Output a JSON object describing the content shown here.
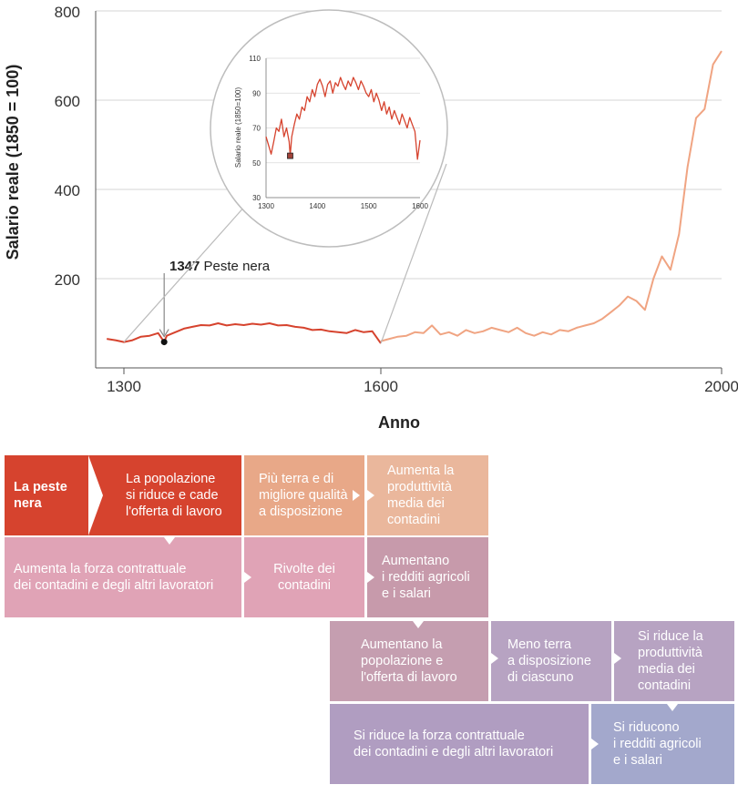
{
  "chart_data": {
    "type": "line",
    "title": "",
    "xlabel": "Anno",
    "ylabel": "Salario reale (1850 = 100)",
    "xlim": [
      1280,
      2000
    ],
    "ylim": [
      0,
      800
    ],
    "xticks": [
      1300,
      1600,
      2000
    ],
    "yticks": [
      200,
      400,
      600,
      800
    ],
    "series": [
      {
        "color": "#d6432e",
        "x": [
          1280,
          1290,
          1300,
          1310,
          1320,
          1330,
          1340,
          1347,
          1350,
          1360,
          1370,
          1380,
          1390,
          1400,
          1410,
          1420,
          1430,
          1440,
          1450,
          1460,
          1470,
          1480,
          1490,
          1500,
          1510,
          1520,
          1530,
          1540,
          1550,
          1560,
          1570,
          1580,
          1590,
          1600
        ],
        "y": [
          65,
          62,
          58,
          62,
          70,
          72,
          78,
          58,
          72,
          80,
          88,
          92,
          96,
          95,
          100,
          95,
          98,
          96,
          99,
          97,
          100,
          95,
          96,
          92,
          90,
          85,
          86,
          82,
          80,
          78,
          85,
          80,
          82,
          55
        ]
      },
      {
        "color": "#f0a482",
        "x": [
          1600,
          1610,
          1620,
          1630,
          1640,
          1650,
          1660,
          1670,
          1680,
          1690,
          1700,
          1710,
          1720,
          1730,
          1740,
          1750,
          1760,
          1770,
          1780,
          1790,
          1800,
          1810,
          1820,
          1830,
          1840,
          1850,
          1860,
          1870,
          1880,
          1890,
          1900,
          1910,
          1920,
          1930,
          1940,
          1950,
          1960,
          1970,
          1980,
          1990,
          2000
        ],
        "y": [
          60,
          65,
          70,
          72,
          80,
          78,
          95,
          75,
          80,
          72,
          85,
          78,
          82,
          90,
          85,
          80,
          90,
          78,
          72,
          80,
          75,
          85,
          82,
          90,
          95,
          100,
          110,
          125,
          140,
          160,
          150,
          130,
          200,
          250,
          220,
          300,
          450,
          560,
          580,
          680,
          710
        ]
      }
    ],
    "annotations": [
      {
        "x": 1347,
        "y": 58,
        "label_bold": "1347",
        "label": "Peste nera"
      }
    ],
    "inset": {
      "type": "line",
      "ylabel": "Salario reale (1850=100)",
      "xlim": [
        1300,
        1600
      ],
      "ylim": [
        30,
        110
      ],
      "xticks": [
        1300,
        1400,
        1500,
        1600
      ],
      "yticks": [
        30,
        50,
        70,
        90,
        110
      ],
      "color": "#d6432e",
      "highlight": {
        "x": 1347,
        "y": 54
      },
      "x": [
        1300,
        1305,
        1310,
        1315,
        1320,
        1325,
        1330,
        1335,
        1340,
        1345,
        1347,
        1350,
        1355,
        1360,
        1365,
        1370,
        1375,
        1380,
        1385,
        1390,
        1395,
        1400,
        1405,
        1410,
        1415,
        1420,
        1425,
        1430,
        1435,
        1440,
        1445,
        1450,
        1455,
        1460,
        1465,
        1470,
        1475,
        1480,
        1485,
        1490,
        1495,
        1500,
        1505,
        1510,
        1515,
        1520,
        1525,
        1530,
        1535,
        1540,
        1545,
        1550,
        1555,
        1560,
        1565,
        1570,
        1575,
        1580,
        1585,
        1590,
        1595,
        1600
      ],
      "y": [
        65,
        60,
        55,
        62,
        70,
        68,
        75,
        65,
        70,
        62,
        54,
        65,
        72,
        78,
        75,
        82,
        80,
        88,
        85,
        92,
        88,
        95,
        98,
        94,
        88,
        95,
        97,
        90,
        96,
        94,
        99,
        95,
        92,
        97,
        94,
        99,
        96,
        92,
        97,
        94,
        90,
        88,
        92,
        85,
        90,
        86,
        80,
        85,
        78,
        82,
        75,
        80,
        76,
        72,
        78,
        74,
        70,
        76,
        72,
        68,
        52,
        63
      ]
    }
  },
  "flow": {
    "box1": "La peste nera",
    "box2": "La popolazione\nsi riduce e cade\nl'offerta di lavoro",
    "box3": "Più terra e di\nmigliore qualità\na disposizione",
    "box4": "Aumenta la\nproduttività\nmedia dei\ncontadini",
    "box5": "Aumenta la forza contrattuale\ndei contadini e degli altri lavoratori",
    "box6": "Rivolte dei\ncontadini",
    "box7": "Aumentano\ni redditi agricoli\ne i salari",
    "box8": "Aumentano la\npopolazione e\nl'offerta di lavoro",
    "box9": "Meno terra\na disposizione\ndi ciascuno",
    "box10": "Si riduce la\nproduttività\nmedia dei\ncontadini",
    "box11": "Si riduce la forza contrattuale\ndei contadini e degli altri lavoratori",
    "box12": "Si riducono\ni redditi agricoli\ne i salari"
  },
  "colors": {
    "red": "#d6432e",
    "salmon": "#e8a888",
    "peach": "#eab79c",
    "pink": "#e0a3b6",
    "mauve": "#c79aab",
    "dusty": "#c59eb0",
    "lavender": "#b7a3c2",
    "purple": "#b09dc1",
    "periwinkle": "#a3a8cc"
  }
}
